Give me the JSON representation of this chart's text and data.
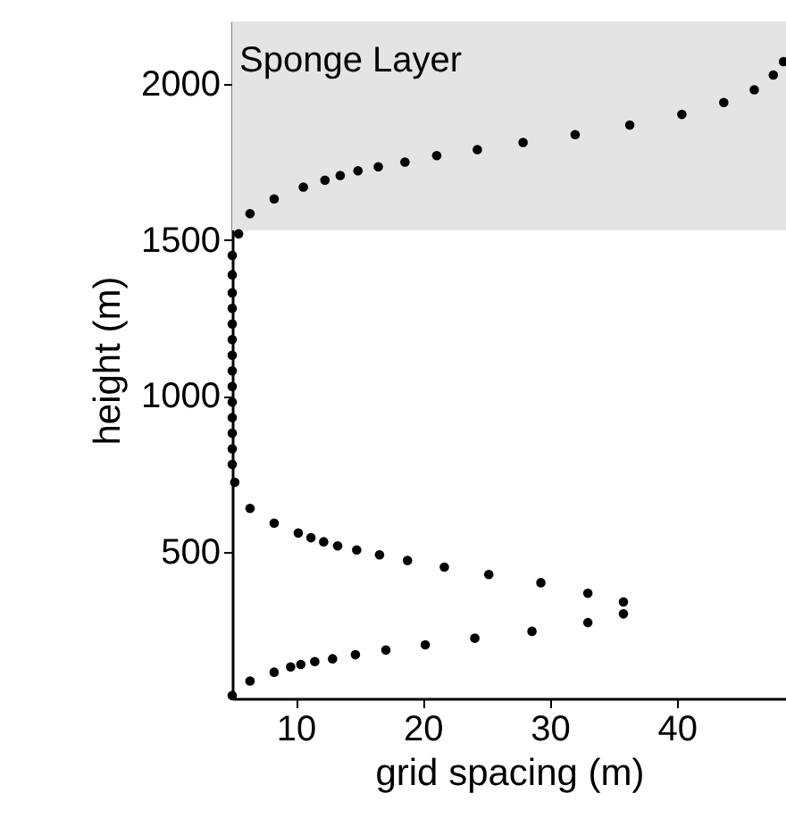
{
  "chart_data": {
    "type": "scatter",
    "xlabel": "grid spacing (m)",
    "ylabel": "height (m)",
    "x": [
      5.0,
      6.4,
      8.3,
      9.6,
      10.4,
      11.5,
      12.9,
      14.7,
      17.1,
      20.2,
      24.1,
      28.6,
      33.0,
      35.8,
      35.8,
      33.0,
      29.3,
      25.2,
      21.7,
      18.8,
      16.6,
      14.8,
      13.3,
      12.2,
      11.2,
      10.2,
      8.3,
      6.4,
      5.2,
      5.0,
      5.0,
      5.0,
      5.0,
      5.0,
      5.0,
      5.0,
      5.0,
      5.0,
      5.0,
      5.0,
      5.0,
      5.0,
      5.0,
      5.5,
      6.4,
      8.3,
      10.6,
      12.3,
      13.5,
      14.9,
      16.5,
      18.6,
      21.1,
      24.3,
      27.9,
      32.0,
      36.3,
      40.4,
      43.7,
      46.1,
      47.6,
      48.4
    ],
    "series": [
      {
        "color": "#000000",
        "values": [
          39,
          86,
          114,
          131,
          139,
          148,
          157,
          170,
          185,
          202,
          223,
          245,
          273,
          301,
          339,
          367,
          401,
          427,
          451,
          472,
          490,
          506,
          519,
          532,
          545,
          560,
          592,
          639,
          723,
          780,
          830,
          880,
          930,
          980,
          1030,
          1080,
          1130,
          1180,
          1230,
          1280,
          1330,
          1388,
          1450,
          1519,
          1584,
          1631,
          1669,
          1691,
          1706,
          1721,
          1734,
          1749,
          1770,
          1789,
          1812,
          1837,
          1868,
          1902,
          1940,
          1981,
          2028,
          2071
        ]
      }
    ],
    "xlim": [
      5,
      48.6
    ],
    "ylim": [
      30,
      2200
    ],
    "xticks": [
      10,
      20,
      30,
      40
    ],
    "yticks": [
      500,
      1000,
      1500,
      2000
    ],
    "bands": [
      {
        "axis": "y",
        "from": 1530,
        "to": 2200,
        "label": "Sponge Layer",
        "color": "#e4e4e4"
      }
    ],
    "marker": "circle",
    "grid": false
  }
}
